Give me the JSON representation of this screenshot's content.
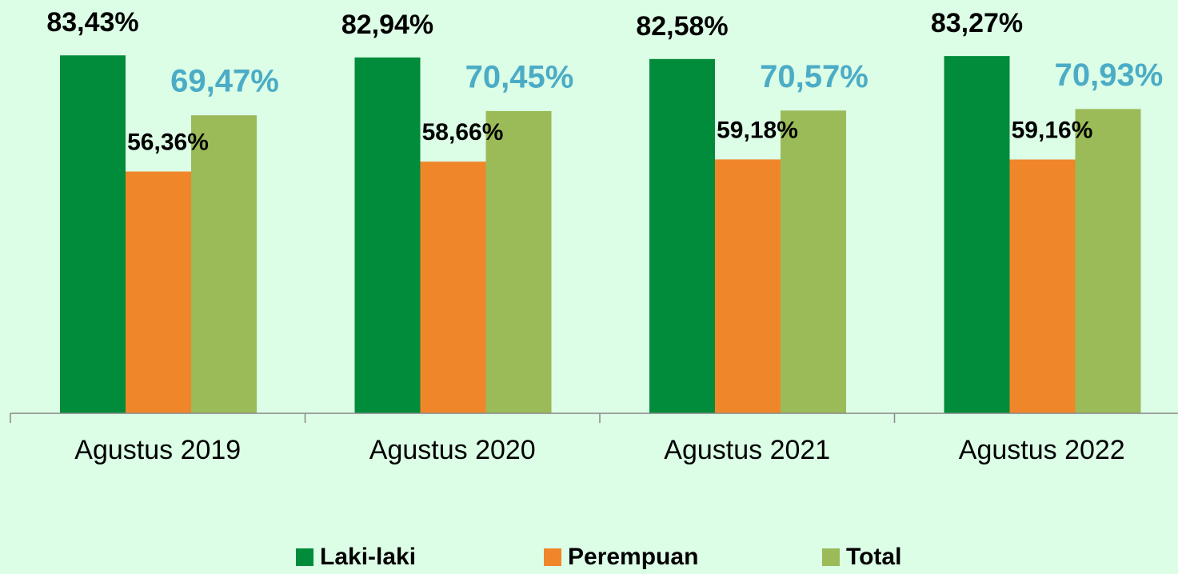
{
  "chart_data": {
    "type": "bar",
    "categories": [
      "Agustus 2019",
      "Agustus 2020",
      "Agustus 2021",
      "Agustus 2022"
    ],
    "series": [
      {
        "name": "Laki-laki",
        "color": "#008c3a",
        "values": [
          83.43,
          82.94,
          82.58,
          83.27
        ],
        "value_labels": [
          "83,43%",
          "82,94%",
          "82,58%",
          "83,27%"
        ]
      },
      {
        "name": "Perempuan",
        "color": "#f0862a",
        "values": [
          56.36,
          58.66,
          59.18,
          59.16
        ],
        "value_labels": [
          "56,36%",
          "58,66%",
          "59,18%",
          "59,16%"
        ]
      },
      {
        "name": "Total",
        "color": "#9bbb59",
        "values": [
          69.47,
          70.45,
          70.57,
          70.93
        ],
        "value_labels": [
          "69,47%",
          "70,45%",
          "70,57%",
          "70,93%"
        ]
      }
    ],
    "ylim": [
      0,
      90
    ]
  }
}
